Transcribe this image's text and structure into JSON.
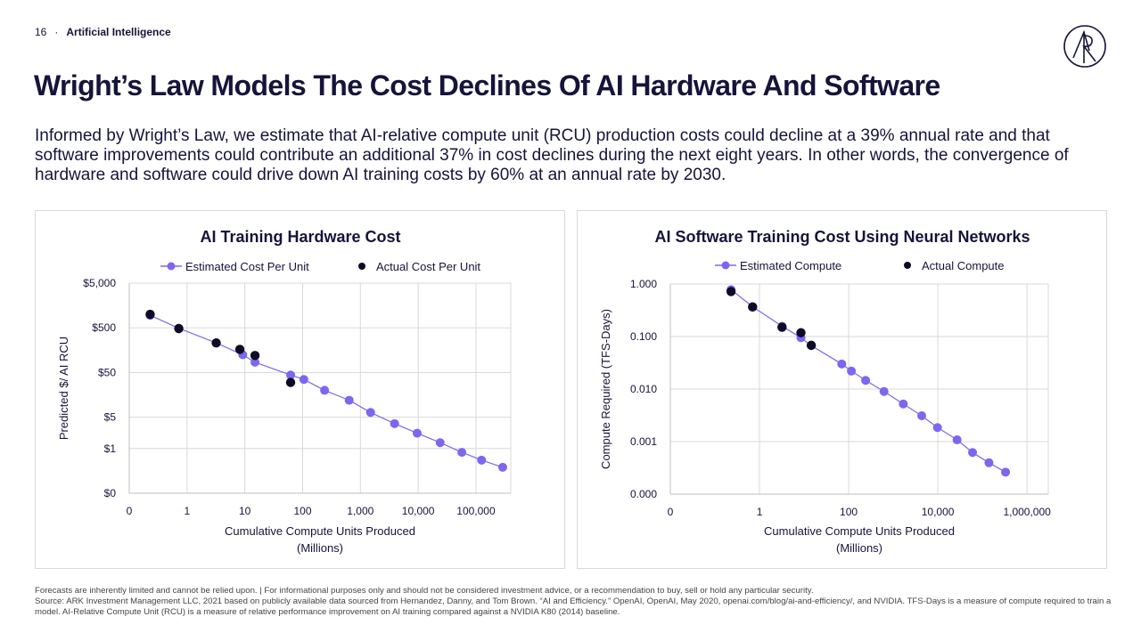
{
  "header": {
    "page_number": "16",
    "separator": "·",
    "section": "Artificial Intelligence",
    "logo_icon": "ark-logo-icon"
  },
  "title": "Wright’s Law Models The Cost Declines Of AI Hardware And Software",
  "description": "Informed by Wright’s Law, we estimate that AI-relative compute unit (RCU) production costs could decline at a 39% annual rate and that software improvements could contribute an additional 37% in cost declines during the next eight years. In other words, the convergence of hardware and software could drive down AI training costs by 60% at an annual rate by 2030.",
  "footer": {
    "line1": "Forecasts are inherently limited and cannot be relied upon. | For informational purposes only and should not be considered investment advice, or a recommendation to buy, sell or hold any particular security.",
    "line2": "Source: ARK Investment Management LLC, 2021 based on publicly available data sourced from Hernandez, Danny, and Tom Brown. “AI and Efficiency.” OpenAI, OpenAI, May 2020, openai.com/blog/ai-and-efficiency/, and NVIDIA. TFS-Days is a measure of compute required to train a model. AI-Relative Compute Unit (RCU) is a measure of relative performance improvement on AI training compared against a NVIDIA K80 (2014) baseline."
  },
  "colors": {
    "estimated": "#7b68ee",
    "actual": "#0d0b26",
    "text": "#16143a",
    "grid": "#d9d9d9"
  },
  "chart_data": [
    {
      "type": "scatter",
      "title": "AI Training Hardware Cost",
      "xlabel": "Cumulative Compute Units Produced",
      "xlabel2": "(Millions)",
      "ylabel": "Predicted $/ AI RCU",
      "x_scale": "log",
      "y_scale": "log",
      "x_ticks": [
        {
          "value": 0.1,
          "label": "0"
        },
        {
          "value": 1,
          "label": "1"
        },
        {
          "value": 10,
          "label": "10"
        },
        {
          "value": 100,
          "label": "100"
        },
        {
          "value": 1000,
          "label": "1,000"
        },
        {
          "value": 10000,
          "label": "10,000"
        },
        {
          "value": 100000,
          "label": "100,000"
        }
      ],
      "y_ticks": [
        {
          "value": 0.1,
          "label": "$0"
        },
        {
          "value": 1,
          "label": "$1"
        },
        {
          "value": 5,
          "label": "$5"
        },
        {
          "value": 50,
          "label": "$50"
        },
        {
          "value": 500,
          "label": "$500"
        },
        {
          "value": 5000,
          "label": "$5,000"
        }
      ],
      "grid": true,
      "legend_position": "top",
      "series": [
        {
          "name": "Estimated Cost Per Unit",
          "style": "line-markers",
          "points": [
            [
              0.23,
              950
            ],
            [
              0.72,
              490
            ],
            [
              3.2,
              230
            ],
            [
              9.2,
              125
            ],
            [
              15,
              85
            ],
            [
              62,
              44
            ],
            [
              105,
              35
            ],
            [
              240,
              20
            ],
            [
              640,
              12
            ],
            [
              1500,
              6.4
            ],
            [
              3900,
              3.6
            ],
            [
              9600,
              2.2
            ],
            [
              24000,
              1.35
            ],
            [
              57000,
              0.82
            ],
            [
              125000,
              0.55
            ],
            [
              290000,
              0.38
            ]
          ]
        },
        {
          "name": "Actual Cost Per Unit",
          "style": "markers",
          "points": [
            [
              0.23,
              1000
            ],
            [
              0.72,
              480
            ],
            [
              3.2,
              230
            ],
            [
              8.2,
              165
            ],
            [
              15,
              120
            ],
            [
              62,
              30
            ]
          ]
        }
      ]
    },
    {
      "type": "scatter",
      "title": "AI Software Training Cost Using Neural Networks",
      "xlabel": "Cumulative Compute Units Produced",
      "xlabel2": "(Millions)",
      "ylabel": "Compute Required (TFS-Days)",
      "x_scale": "log",
      "y_scale": "log",
      "x_ticks": [
        {
          "value": 0.01,
          "label": "0"
        },
        {
          "value": 1,
          "label": "1"
        },
        {
          "value": 100,
          "label": "100"
        },
        {
          "value": 10000,
          "label": "10,000"
        },
        {
          "value": 1000000,
          "label": "1,000,000"
        }
      ],
      "y_ticks": [
        {
          "value": 0.0001,
          "label": "0.000"
        },
        {
          "value": 0.001,
          "label": "0.001"
        },
        {
          "value": 0.01,
          "label": "0.010"
        },
        {
          "value": 0.1,
          "label": "0.100"
        },
        {
          "value": 1,
          "label": "1.000"
        }
      ],
      "grid": true,
      "legend_position": "top",
      "series": [
        {
          "name": "Estimated Compute",
          "style": "line-markers",
          "points": [
            [
              0.23,
              0.78
            ],
            [
              0.7,
              0.37
            ],
            [
              3.2,
              0.157
            ],
            [
              8.5,
              0.095
            ],
            [
              14.5,
              0.067
            ],
            [
              70,
              0.03
            ],
            [
              115,
              0.022
            ],
            [
              240,
              0.0146
            ],
            [
              620,
              0.009
            ],
            [
              1680,
              0.0052
            ],
            [
              4350,
              0.0031
            ],
            [
              9800,
              0.00185
            ],
            [
              27000,
              0.00108
            ],
            [
              60000,
              0.00062
            ],
            [
              140000,
              0.000395
            ],
            [
              330000,
              0.000262
            ]
          ]
        },
        {
          "name": "Actual Compute",
          "style": "markers",
          "points": [
            [
              0.23,
              0.72
            ],
            [
              0.7,
              0.365
            ],
            [
              3.2,
              0.15
            ],
            [
              8.5,
              0.118
            ],
            [
              14.5,
              0.068
            ]
          ]
        }
      ]
    }
  ]
}
